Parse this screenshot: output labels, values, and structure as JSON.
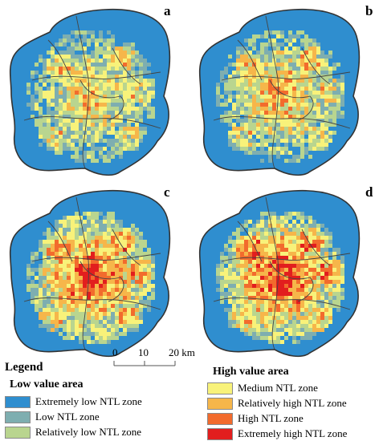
{
  "panels": [
    {
      "id": "a",
      "label": "a",
      "seed": 11,
      "intensity": 0.55
    },
    {
      "id": "b",
      "label": "b",
      "seed": 23,
      "intensity": 0.62
    },
    {
      "id": "c",
      "label": "c",
      "seed": 37,
      "intensity": 0.85
    },
    {
      "id": "d",
      "label": "d",
      "seed": 51,
      "intensity": 0.9
    }
  ],
  "scale_bar": {
    "ticks": [
      "0",
      "10",
      "20 km"
    ]
  },
  "legend": {
    "title": "Legend",
    "low": {
      "title": "Low value area",
      "items": [
        {
          "label": "Extremely low NTL zone",
          "color": "#2f8ecf"
        },
        {
          "label": "Low NTL zone",
          "color": "#7eaeb0"
        },
        {
          "label": "Relatively low NTL zone",
          "color": "#b9d58f"
        }
      ]
    },
    "high": {
      "title": "High value area",
      "items": [
        {
          "label": "Medium NTL zone",
          "color": "#f8f27a"
        },
        {
          "label": "Relatively high NTL zone",
          "color": "#f6b64a"
        },
        {
          "label": "High NTL zone",
          "color": "#f26b2d"
        },
        {
          "label": "Extremely high NTL zone",
          "color": "#e21e1e"
        }
      ]
    }
  }
}
